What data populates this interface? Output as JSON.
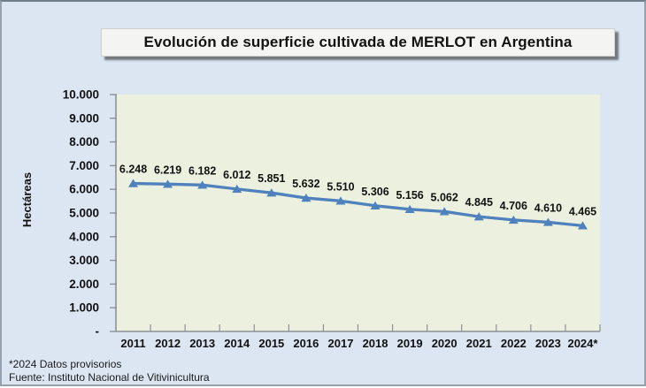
{
  "title": "Evolución de superficie cultivada de MERLOT en Argentina",
  "footer": {
    "note1": "*2024 Datos provisorios",
    "note2": "Fuente:  Instituto Nacional de Vitivinicultura"
  },
  "colors": {
    "page_background": "#dce6f2",
    "plot_background": "#ebf1de",
    "line": "#4f81bd",
    "axis": "#8c9196",
    "label_text": "#111111"
  },
  "chart_data": {
    "type": "line",
    "title": "Evolución de superficie cultivada de MERLOT en Argentina",
    "xlabel": "",
    "ylabel": "Hectáreas",
    "categories": [
      "2011",
      "2012",
      "2013",
      "2014",
      "2015",
      "2016",
      "2017",
      "2018",
      "2019",
      "2020",
      "2021",
      "2022",
      "2023",
      "2024*"
    ],
    "values": [
      6248,
      6219,
      6182,
      6012,
      5851,
      5632,
      5510,
      5306,
      5156,
      5062,
      4845,
      4706,
      4610,
      4465
    ],
    "point_labels": [
      "6.248",
      "6.219",
      "6.182",
      "6.012",
      "5.851",
      "5.632",
      "5.510",
      "5.306",
      "5.156",
      "5.062",
      "4.845",
      "4.706",
      "4.610",
      "4.465"
    ],
    "y_tick_labels": [
      "10.000",
      "9.000",
      "8.000",
      "7.000",
      "6.000",
      "5.000",
      "4.000",
      "3.000",
      "2.000",
      "1.000",
      "-"
    ],
    "ylim": [
      0,
      10000
    ],
    "y_step": 1000,
    "grid": false,
    "legend": "none",
    "marker": "triangle-up"
  }
}
